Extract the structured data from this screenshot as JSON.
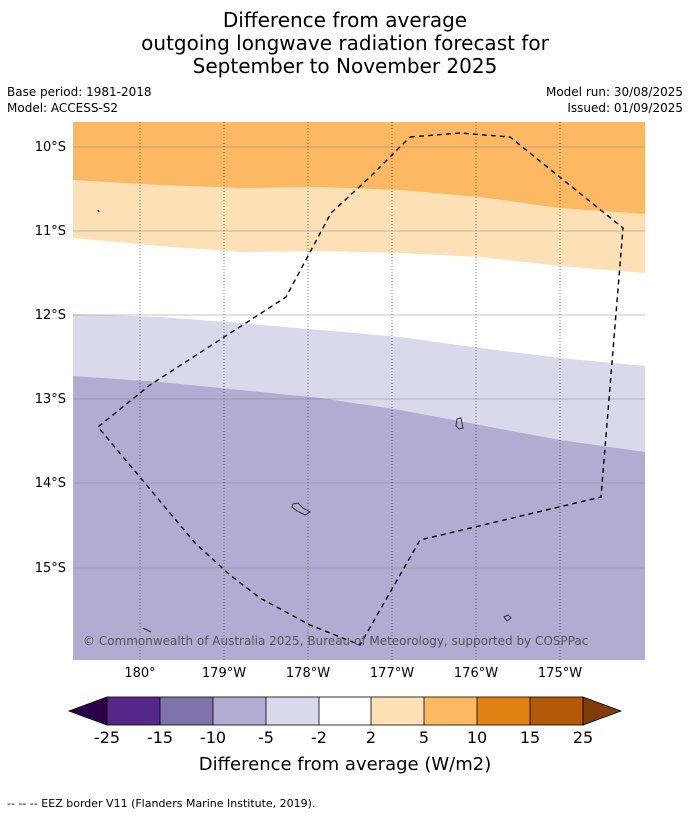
{
  "title": {
    "line1": "Difference from average",
    "line2": "outgoing longwave radiation forecast for",
    "line3": "September to November 2025"
  },
  "meta": {
    "base_period": "Base period: 1981-2018",
    "model": "Model: ACCESS-S2",
    "model_run": "Model run: 30/08/2025",
    "issued": "Issued: 01/09/2025"
  },
  "map": {
    "lat_labels": [
      "10°S",
      "11°S",
      "12°S",
      "13°S",
      "14°S",
      "15°S"
    ],
    "lon_labels": [
      "180°",
      "179°W",
      "178°W",
      "177°W",
      "176°W",
      "175°W"
    ],
    "copyright": "© Commonwealth of Australia 2025, Bureau of Meteorology, supported by COSPPac",
    "colors": {
      "orange": "#fdb863",
      "light_orange": "#fee0b6",
      "white": "#ffffff",
      "light_purple": "#d8daeb",
      "purple": "#b2abd2"
    }
  },
  "colorbar": {
    "tick_labels": [
      "-25",
      "-15",
      "-10",
      "-5",
      "-2",
      "2",
      "5",
      "10",
      "15",
      "25"
    ],
    "title": "Difference from average (W/m2)",
    "colors": [
      "#2d004b",
      "#542788",
      "#8073ac",
      "#b2abd2",
      "#d8daeb",
      "#ffffff",
      "#fee0b6",
      "#fdb863",
      "#e08214",
      "#b35806",
      "#7f3b08"
    ]
  },
  "footer": {
    "legend_text": "--  --  -- EEZ border V11 (Flanders Marine Institute, 2019)."
  }
}
